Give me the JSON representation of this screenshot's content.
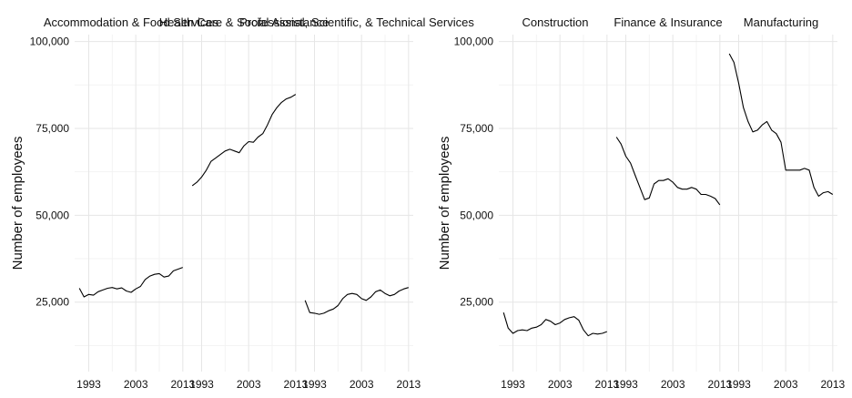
{
  "chart_data": [
    {
      "type": "line",
      "ylabel": "Number of employees",
      "xlabel": "",
      "ylim": [
        5000,
        102000
      ],
      "xlim": [
        1990,
        2014
      ],
      "x_ticks": [
        1993,
        2003,
        2013
      ],
      "x_tick_labels": [
        "1993",
        "2003",
        "2013"
      ],
      "y_ticks": [
        25000,
        50000,
        75000,
        100000
      ],
      "y_tick_labels": [
        "25,000",
        "50,000",
        "75,000",
        "100,000"
      ],
      "grid": true,
      "legend": "none",
      "panels": [
        {
          "name": "Accommodation & Food Services",
          "x": [
            1991,
            1992,
            1993,
            1994,
            1995,
            1996,
            1997,
            1998,
            1999,
            2000,
            2001,
            2002,
            2003,
            2004,
            2005,
            2006,
            2007,
            2008,
            2009,
            2010,
            2011,
            2012,
            2013
          ],
          "y": [
            29000,
            26500,
            27200,
            27000,
            28000,
            28500,
            29000,
            29200,
            28800,
            29100,
            28200,
            27800,
            28800,
            29500,
            31500,
            32500,
            33000,
            33200,
            32200,
            32500,
            34000,
            34500,
            35000
          ]
        },
        {
          "name": "Health Care & Social Assistance",
          "x": [
            1991,
            1992,
            1993,
            1994,
            1995,
            1996,
            1997,
            1998,
            1999,
            2000,
            2001,
            2002,
            2003,
            2004,
            2005,
            2006,
            2007,
            2008,
            2009,
            2010,
            2011,
            2012,
            2013
          ],
          "y": [
            58500,
            59500,
            61000,
            63000,
            65500,
            66500,
            67500,
            68500,
            69000,
            68500,
            68000,
            70000,
            71200,
            71000,
            72500,
            73500,
            76000,
            79000,
            81000,
            82500,
            83500,
            84000,
            84800
          ]
        },
        {
          "name": "Professional, Scientific, & Technical Services",
          "x": [
            1991,
            1992,
            1993,
            1994,
            1995,
            1996,
            1997,
            1998,
            1999,
            2000,
            2001,
            2002,
            2003,
            2004,
            2005,
            2006,
            2007,
            2008,
            2009,
            2010,
            2011,
            2012,
            2013
          ],
          "y": [
            25500,
            22000,
            21800,
            21500,
            21800,
            22500,
            23000,
            24000,
            26000,
            27200,
            27500,
            27200,
            26000,
            25500,
            26500,
            28000,
            28500,
            27500,
            26800,
            27200,
            28200,
            28800,
            29200
          ]
        }
      ]
    },
    {
      "type": "line",
      "ylabel": "Number of employees",
      "xlabel": "",
      "ylim": [
        5000,
        102000
      ],
      "xlim": [
        1990,
        2014
      ],
      "x_ticks": [
        1993,
        2003,
        2013
      ],
      "x_tick_labels": [
        "1993",
        "2003",
        "2013"
      ],
      "y_ticks": [
        25000,
        50000,
        75000,
        100000
      ],
      "y_tick_labels": [
        "25,000",
        "50,000",
        "75,000",
        "100,000"
      ],
      "grid": true,
      "legend": "none",
      "panels": [
        {
          "name": "Construction",
          "x": [
            1991,
            1992,
            1993,
            1994,
            1995,
            1996,
            1997,
            1998,
            1999,
            2000,
            2001,
            2002,
            2003,
            2004,
            2005,
            2006,
            2007,
            2008,
            2009,
            2010,
            2011,
            2012,
            2013
          ],
          "y": [
            22000,
            17500,
            16000,
            16800,
            17000,
            16800,
            17500,
            17800,
            18500,
            20000,
            19500,
            18500,
            19000,
            20000,
            20500,
            20800,
            19800,
            17000,
            15300,
            16000,
            15800,
            16000,
            16500
          ]
        },
        {
          "name": "Finance & Insurance",
          "x": [
            1991,
            1992,
            1993,
            1994,
            1995,
            1996,
            1997,
            1998,
            1999,
            2000,
            2001,
            2002,
            2003,
            2004,
            2005,
            2006,
            2007,
            2008,
            2009,
            2010,
            2011,
            2012,
            2013
          ],
          "y": [
            72500,
            70500,
            67000,
            65000,
            61500,
            58000,
            54500,
            55000,
            59000,
            60000,
            60000,
            60500,
            59500,
            58000,
            57500,
            57500,
            58000,
            57500,
            56000,
            56000,
            55500,
            54800,
            53000
          ]
        },
        {
          "name": "Manufacturing",
          "x": [
            1991,
            1992,
            1993,
            1994,
            1995,
            1996,
            1997,
            1998,
            1999,
            2000,
            2001,
            2002,
            2003,
            2004,
            2005,
            2006,
            2007,
            2008,
            2009,
            2010,
            2011,
            2012,
            2013
          ],
          "y": [
            96500,
            94000,
            88000,
            81000,
            77000,
            74000,
            74500,
            76000,
            77000,
            74500,
            73500,
            71000,
            63000,
            63000,
            63000,
            63000,
            63500,
            63000,
            58000,
            55500,
            56500,
            56800,
            56000
          ]
        }
      ]
    }
  ]
}
